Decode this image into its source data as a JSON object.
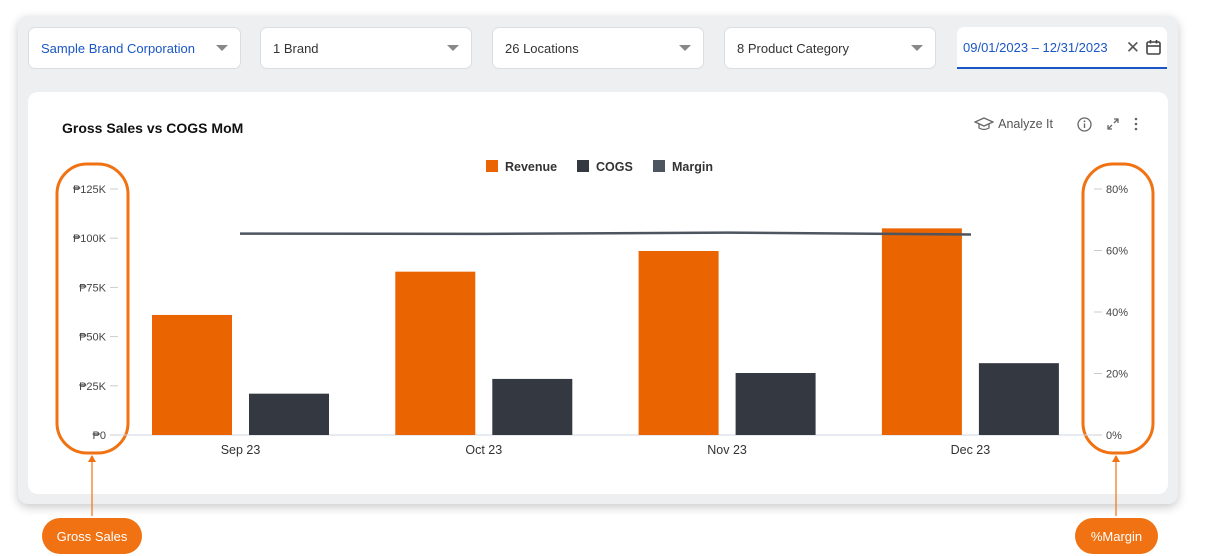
{
  "filters": {
    "company": "Sample Brand Corporation",
    "brand": "1 Brand",
    "locations": "26 Locations",
    "category": "8 Product Category",
    "date_range": "09/01/2023 – 12/31/2023"
  },
  "card": {
    "title": "Gross Sales vs COGS MoM",
    "analyze_label": "Analyze It"
  },
  "callouts": {
    "left": "Gross Sales",
    "right": "%Margin"
  },
  "colors": {
    "revenue": "#ea6402",
    "cogs": "#343840",
    "margin": "#4d5560",
    "accent": "#f07212",
    "link": "#1a56c4"
  },
  "chart_data": {
    "type": "bar",
    "title": "Gross Sales vs COGS MoM",
    "categories": [
      "Sep 23",
      "Oct 23",
      "Nov 23",
      "Dec 23"
    ],
    "series": [
      {
        "name": "Revenue",
        "type": "bar",
        "axis": "left",
        "color": "#ea6402",
        "values": [
          61000,
          83000,
          93500,
          105000
        ]
      },
      {
        "name": "COGS",
        "type": "bar",
        "axis": "left",
        "color": "#343840",
        "values": [
          21000,
          28500,
          31500,
          36500
        ]
      },
      {
        "name": "Margin",
        "type": "line",
        "axis": "right",
        "color": "#4d5560",
        "values": [
          65.5,
          65.4,
          65.8,
          65.2
        ]
      }
    ],
    "left_axis": {
      "ticks": [
        "₱0",
        "₱25K",
        "₱50K",
        "₱75K",
        "₱100K",
        "₱125K"
      ],
      "ylim": [
        0,
        125000
      ]
    },
    "right_axis": {
      "ticks": [
        "0%",
        "20%",
        "40%",
        "60%",
        "80%"
      ],
      "ylim": [
        0,
        80
      ]
    },
    "legend": "top-center",
    "grid": false
  }
}
